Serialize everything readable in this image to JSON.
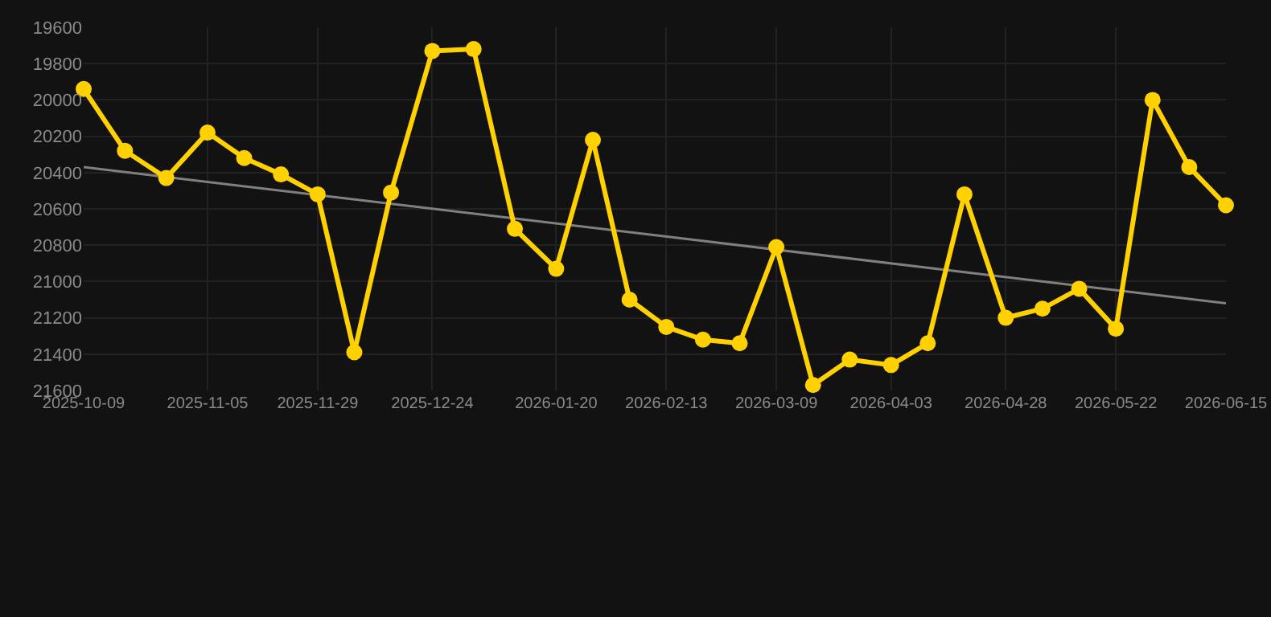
{
  "chart_data": {
    "type": "line",
    "ylim": [
      21600,
      19600
    ],
    "yticks": [
      19600,
      19800,
      20000,
      20200,
      20400,
      20600,
      20800,
      21000,
      21200,
      21400,
      21600
    ],
    "xlim": [
      "2025-10-09",
      "2026-06-15"
    ],
    "xticks": [
      "2025-10-09",
      "2025-11-05",
      "2025-11-29",
      "2025-12-24",
      "2026-01-20",
      "2026-02-13",
      "2026-03-09",
      "2026-04-03",
      "2026-04-28",
      "2026-05-22",
      "2026-06-15"
    ],
    "x": [
      "2025-10-09",
      "2025-10-18",
      "2025-10-27",
      "2025-11-05",
      "2025-11-13",
      "2025-11-21",
      "2025-11-29",
      "2025-12-07",
      "2025-12-15",
      "2025-12-24",
      "2026-01-02",
      "2026-01-11",
      "2026-01-20",
      "2026-01-28",
      "2026-02-05",
      "2026-02-13",
      "2026-02-21",
      "2026-03-01",
      "2026-03-09",
      "2026-03-17",
      "2026-03-25",
      "2026-04-03",
      "2026-04-11",
      "2026-04-19",
      "2026-04-28",
      "2026-05-06",
      "2026-05-14",
      "2026-05-22",
      "2026-05-30",
      "2026-06-07",
      "2026-06-15"
    ],
    "series": [
      {
        "color": "#ffd100",
        "values": [
          19940,
          20280,
          20430,
          20180,
          20320,
          20410,
          20520,
          21390,
          20510,
          19730,
          19720,
          20710,
          20930,
          20220,
          21100,
          21250,
          21320,
          21340,
          20810,
          21570,
          21430,
          21460,
          21340,
          20520,
          21200,
          21150,
          21040,
          21260,
          20000,
          20370,
          20580
        ]
      },
      {
        "type": "line",
        "color": "#808080",
        "marker": "none",
        "x": [
          "2025-10-09",
          "2026-06-15"
        ],
        "values": [
          20370,
          21120
        ]
      }
    ],
    "marker": "circle",
    "grid": true
  }
}
